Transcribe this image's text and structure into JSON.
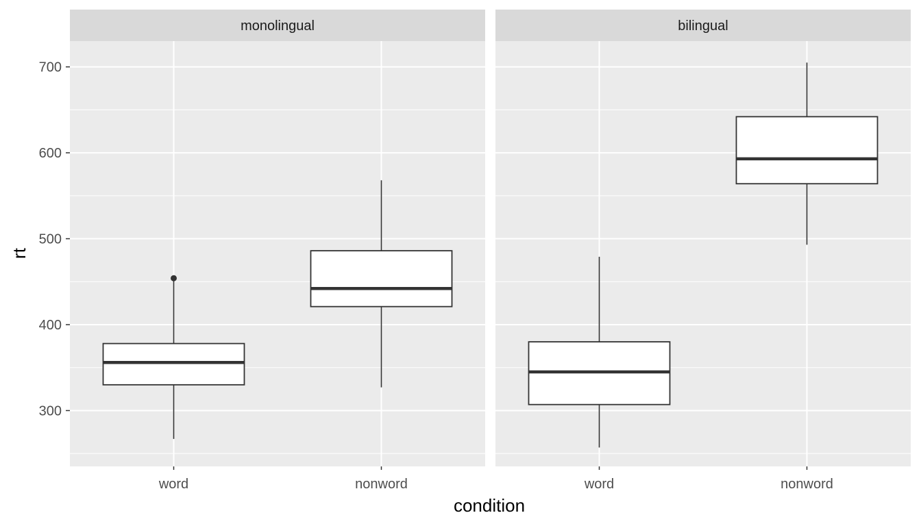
{
  "chart_data": {
    "type": "boxplot",
    "xlabel": "condition",
    "ylabel": "rt",
    "ylim": [
      235,
      730
    ],
    "yticks": [
      300,
      400,
      500,
      600,
      700
    ],
    "categories": [
      "word",
      "nonword"
    ],
    "grid": true,
    "colors": {
      "panel_bg": "#ebebeb",
      "strip_bg": "#d9d9d9",
      "grid": "#ffffff",
      "box_fill": "#ffffff",
      "box_line": "#333333"
    },
    "facets": [
      {
        "name": "monolingual",
        "boxes": [
          {
            "category": "word",
            "lower_whisker": 267,
            "q1": 330,
            "median": 356,
            "q3": 378,
            "upper_whisker": 452,
            "outliers": [
              454
            ]
          },
          {
            "category": "nonword",
            "lower_whisker": 327,
            "q1": 421,
            "median": 442,
            "q3": 486,
            "upper_whisker": 568,
            "outliers": []
          }
        ]
      },
      {
        "name": "bilingual",
        "boxes": [
          {
            "category": "word",
            "lower_whisker": 257,
            "q1": 307,
            "median": 345,
            "q3": 380,
            "upper_whisker": 479,
            "outliers": []
          },
          {
            "category": "nonword",
            "lower_whisker": 493,
            "q1": 564,
            "median": 593,
            "q3": 642,
            "upper_whisker": 705,
            "outliers": []
          }
        ]
      }
    ]
  }
}
